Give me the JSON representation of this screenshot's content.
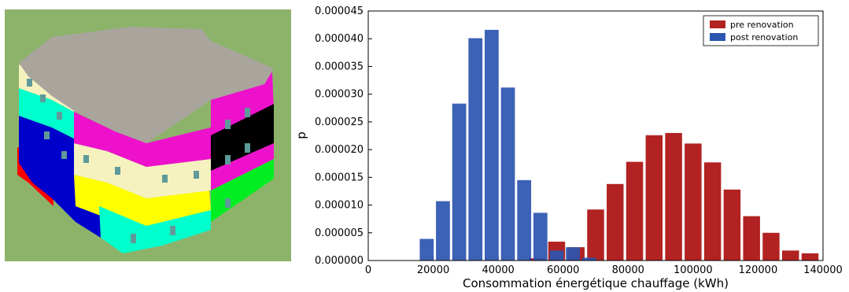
{
  "image": {
    "description_icon": "building-3d-model-icon",
    "colors": {
      "background": "#8db36b",
      "roof": "#a9a59d",
      "red": "#ff0000",
      "blue": "#0000cc",
      "cyan": "#00ffcc",
      "yellow": "#ffff00",
      "cream": "#f5f2bf",
      "magenta": "#ee11cc",
      "green": "#00ee22",
      "black": "#000000"
    }
  },
  "chart_data": {
    "type": "bar",
    "xlabel": "Consommation énergétique chauffage (kWh)",
    "ylabel": "p",
    "xlim": [
      0,
      140000
    ],
    "ylim": [
      0,
      4.5e-05
    ],
    "xticks": [
      0,
      20000,
      40000,
      60000,
      80000,
      100000,
      120000,
      140000
    ],
    "yticks": [
      "0.000000",
      "0.000005",
      "0.000010",
      "0.000015",
      "0.000020",
      "0.000025",
      "0.000030",
      "0.000035",
      "0.000040",
      "0.000045"
    ],
    "legend_position": "top-right",
    "series": [
      {
        "name": "pre renovation",
        "color": "#b22222",
        "bins": [
          {
            "x": 52000,
            "y": 4e-07
          },
          {
            "x": 58000,
            "y": 3.4e-06
          },
          {
            "x": 64000,
            "y": 2.4e-06
          },
          {
            "x": 70000,
            "y": 9.2e-06
          },
          {
            "x": 76000,
            "y": 1.38e-05
          },
          {
            "x": 82000,
            "y": 1.78e-05
          },
          {
            "x": 88000,
            "y": 2.26e-05
          },
          {
            "x": 94000,
            "y": 2.3e-05
          },
          {
            "x": 100000,
            "y": 2.11e-05
          },
          {
            "x": 106000,
            "y": 1.77e-05
          },
          {
            "x": 112000,
            "y": 1.28e-05
          },
          {
            "x": 118000,
            "y": 8e-06
          },
          {
            "x": 124000,
            "y": 5e-06
          },
          {
            "x": 130000,
            "y": 1.8e-06
          },
          {
            "x": 136000,
            "y": 1.3e-06
          }
        ]
      },
      {
        "name": "post renovation",
        "color": "#2b55b0",
        "bins": [
          {
            "x": 18000,
            "y": 3.9e-06
          },
          {
            "x": 23000,
            "y": 1.07e-05
          },
          {
            "x": 28000,
            "y": 2.83e-05
          },
          {
            "x": 33000,
            "y": 4.01e-05
          },
          {
            "x": 38000,
            "y": 4.16e-05
          },
          {
            "x": 43000,
            "y": 3.12e-05
          },
          {
            "x": 48000,
            "y": 1.45e-05
          },
          {
            "x": 53000,
            "y": 8.6e-06
          },
          {
            "x": 58000,
            "y": 1.8e-06
          },
          {
            "x": 63000,
            "y": 2.4e-06
          },
          {
            "x": 68000,
            "y": 5e-07
          }
        ]
      }
    ]
  }
}
